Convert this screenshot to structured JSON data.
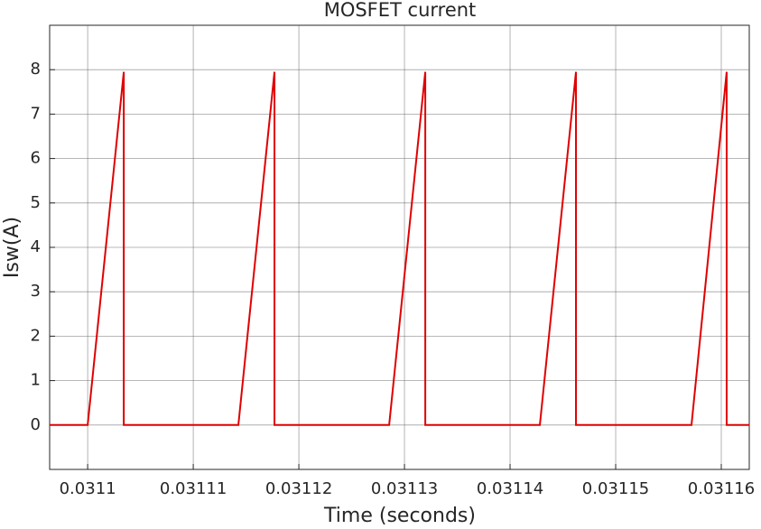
{
  "chart_data": {
    "type": "line",
    "title": "MOSFET current",
    "x_label": "Time (seconds)",
    "y_label": "Isw(A)",
    "x": [
      0.0310964,
      0.0311,
      0.03110342,
      0.03110342,
      0.03111427,
      0.03111769,
      0.03111769,
      0.03112855,
      0.03113197,
      0.03113197,
      0.03114282,
      0.03114624,
      0.03114624,
      0.03115718,
      0.03116051,
      0.03116051,
      0.03116265
    ],
    "values": [
      0,
      0,
      7.95,
      0,
      0,
      7.95,
      0,
      0,
      7.95,
      0,
      0,
      7.95,
      0,
      0,
      7.95,
      0,
      0
    ],
    "color": "#e00000",
    "xlim": [
      0.0310964,
      0.03116265
    ],
    "ylim": [
      -1,
      9
    ],
    "xticks": [
      0.0311,
      0.03111,
      0.03112,
      0.03113,
      0.03114,
      0.03115,
      0.03116
    ],
    "yticks": [
      0,
      1,
      2,
      3,
      4,
      5,
      6,
      7,
      8
    ],
    "grid": true
  }
}
